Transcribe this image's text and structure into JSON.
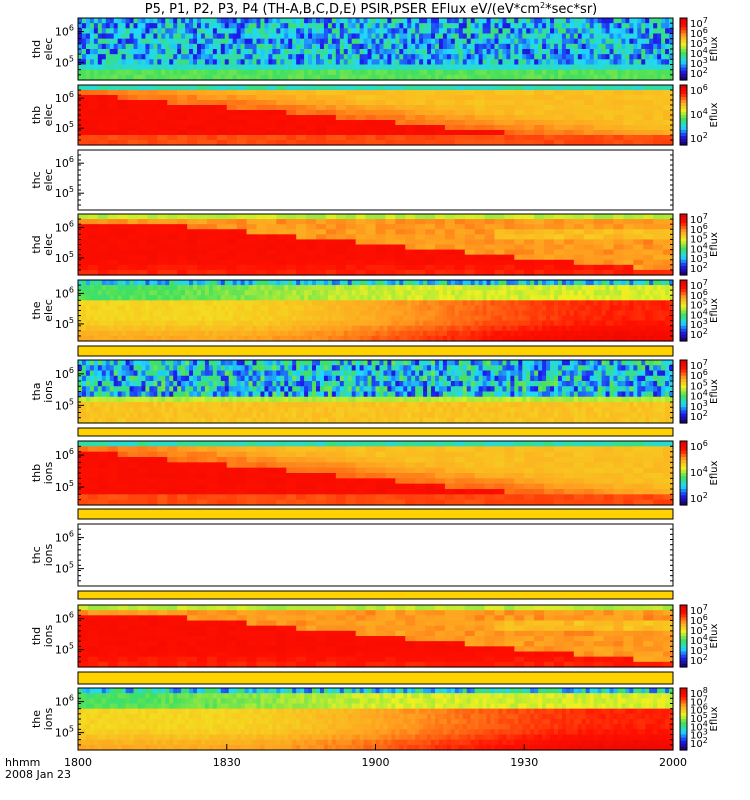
{
  "figure": {
    "title_main": "P5, P1, P2, P3, P4 (TH-A,B,C,D,E) PSIR,PSER EFlux eV/(eV*cm",
    "title_exp": "2",
    "title_tail": "*sec*sr)",
    "time_label": "hhmm",
    "date_label": "2008 Jan 23",
    "x_ticks": [
      "1800",
      "1830",
      "1900",
      "1930",
      "2000"
    ]
  },
  "colors": {
    "colormap": [
      "#1a0060",
      "#1e1ef0",
      "#1fd8ff",
      "#40e060",
      "#f0f020",
      "#ffa020",
      "#ff1000",
      "#e00000"
    ],
    "strip": "#ffd200",
    "frame": "#000000"
  },
  "chart_data": [
    {
      "type": "heatmap",
      "probe": "thd",
      "species": "elec",
      "y_ticks": [
        "6",
        "5"
      ],
      "colorbar_label": "Eflux",
      "cb_ticks": [
        "7",
        "6",
        "5",
        "4",
        "3",
        "2"
      ],
      "pattern": "noisy",
      "has_data": true
    },
    {
      "type": "heatmap",
      "probe": "thb",
      "species": "elec",
      "y_ticks": [
        "6",
        "5"
      ],
      "colorbar_label": "Eflux",
      "cb_ticks": [
        "6",
        "4",
        "2"
      ],
      "pattern": "warm_b",
      "has_data": true
    },
    {
      "type": "heatmap",
      "probe": "thc",
      "species": "elec",
      "y_ticks": [
        "6",
        "5"
      ],
      "colorbar_label": "",
      "cb_ticks": [],
      "pattern": "empty",
      "has_data": false
    },
    {
      "type": "heatmap",
      "probe": "thd",
      "species": "elec",
      "y_ticks": [
        "6",
        "5"
      ],
      "colorbar_label": "Eflux",
      "cb_ticks": [
        "7",
        "6",
        "5",
        "4",
        "3",
        "2"
      ],
      "pattern": "warm_d",
      "has_data": true
    },
    {
      "type": "heatmap",
      "probe": "the",
      "species": "elec",
      "y_ticks": [
        "6",
        "5"
      ],
      "colorbar_label": "Eflux",
      "cb_ticks": [
        "7",
        "6",
        "5",
        "4",
        "3",
        "2"
      ],
      "pattern": "warm_e",
      "has_data": true
    },
    {
      "type": "heatmap",
      "probe": "tha",
      "species": "ions",
      "y_ticks": [
        "6",
        "5"
      ],
      "colorbar_label": "Eflux",
      "cb_ticks": [
        "7",
        "6",
        "5",
        "4",
        "3",
        "2"
      ],
      "pattern": "ions_a",
      "has_data": true
    },
    {
      "type": "heatmap",
      "probe": "thb",
      "species": "ions",
      "y_ticks": [
        "6",
        "5"
      ],
      "colorbar_label": "Eflux",
      "cb_ticks": [
        "6",
        "4",
        "2"
      ],
      "pattern": "warm_b",
      "has_data": true
    },
    {
      "type": "heatmap",
      "probe": "thc",
      "species": "ions",
      "y_ticks": [
        "6",
        "5"
      ],
      "colorbar_label": "",
      "cb_ticks": [],
      "pattern": "empty",
      "has_data": false
    },
    {
      "type": "heatmap",
      "probe": "thd",
      "species": "ions",
      "y_ticks": [
        "6",
        "5"
      ],
      "colorbar_label": "Eflux",
      "cb_ticks": [
        "7",
        "6",
        "5",
        "4",
        "3",
        "2"
      ],
      "pattern": "warm_d",
      "has_data": true
    },
    {
      "type": "heatmap",
      "probe": "the",
      "species": "ions",
      "y_ticks": [
        "6",
        "5"
      ],
      "colorbar_label": "Eflux",
      "cb_ticks": [
        "8",
        "7",
        "6",
        "5",
        "4",
        "3",
        "2"
      ],
      "pattern": "warm_e",
      "has_data": true
    }
  ]
}
